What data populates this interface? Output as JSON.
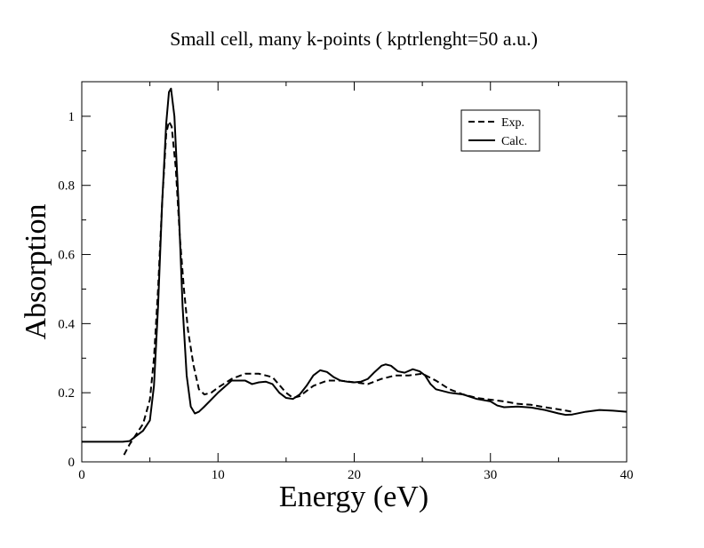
{
  "chart_data": {
    "type": "line",
    "title": "Small cell, many k-points ( kptrlenght=50 a.u.)",
    "xlabel": "Energy (eV)",
    "ylabel": "Absorption",
    "xlim": [
      0,
      40
    ],
    "ylim": [
      0,
      1.1
    ],
    "x_ticks": [
      0,
      10,
      20,
      30,
      40
    ],
    "y_ticks": [
      0,
      0.2,
      0.4,
      0.6,
      0.8,
      1
    ],
    "x_tick_labels": [
      "0",
      "10",
      "20",
      "30",
      "40"
    ],
    "y_tick_labels": [
      "0",
      "0.2",
      "0.4",
      "0.6",
      "0.8",
      "1"
    ],
    "grid": false,
    "legend_position": "top-right",
    "series": [
      {
        "name": "Exp.",
        "style": "dashed",
        "color": "#000000",
        "points": [
          [
            3.1,
            0.02
          ],
          [
            3.5,
            0.05
          ],
          [
            4.0,
            0.08
          ],
          [
            4.5,
            0.11
          ],
          [
            5.0,
            0.18
          ],
          [
            5.3,
            0.3
          ],
          [
            5.6,
            0.5
          ],
          [
            5.9,
            0.75
          ],
          [
            6.2,
            0.95
          ],
          [
            6.4,
            0.985
          ],
          [
            6.6,
            0.97
          ],
          [
            6.9,
            0.85
          ],
          [
            7.2,
            0.65
          ],
          [
            7.5,
            0.5
          ],
          [
            7.8,
            0.38
          ],
          [
            8.2,
            0.28
          ],
          [
            8.6,
            0.21
          ],
          [
            9.0,
            0.195
          ],
          [
            9.5,
            0.2
          ],
          [
            10.0,
            0.215
          ],
          [
            11.0,
            0.24
          ],
          [
            12.0,
            0.255
          ],
          [
            13.0,
            0.255
          ],
          [
            14.0,
            0.245
          ],
          [
            15.0,
            0.2
          ],
          [
            15.5,
            0.185
          ],
          [
            16.0,
            0.19
          ],
          [
            17.0,
            0.22
          ],
          [
            18.0,
            0.235
          ],
          [
            19.0,
            0.235
          ],
          [
            20.0,
            0.23
          ],
          [
            21.0,
            0.225
          ],
          [
            22.0,
            0.24
          ],
          [
            23.0,
            0.25
          ],
          [
            24.0,
            0.25
          ],
          [
            25.0,
            0.255
          ],
          [
            26.0,
            0.235
          ],
          [
            27.0,
            0.21
          ],
          [
            28.0,
            0.195
          ],
          [
            29.0,
            0.185
          ],
          [
            30.0,
            0.18
          ],
          [
            31.0,
            0.175
          ],
          [
            32.0,
            0.168
          ],
          [
            33.0,
            0.165
          ],
          [
            34.0,
            0.158
          ],
          [
            35.0,
            0.152
          ],
          [
            36.0,
            0.145
          ]
        ]
      },
      {
        "name": "Calc.",
        "style": "solid",
        "color": "#000000",
        "points": [
          [
            0.0,
            0.058
          ],
          [
            3.0,
            0.058
          ],
          [
            3.5,
            0.06
          ],
          [
            4.0,
            0.075
          ],
          [
            4.5,
            0.09
          ],
          [
            5.0,
            0.12
          ],
          [
            5.3,
            0.22
          ],
          [
            5.6,
            0.45
          ],
          [
            5.9,
            0.75
          ],
          [
            6.2,
            0.98
          ],
          [
            6.4,
            1.07
          ],
          [
            6.55,
            1.08
          ],
          [
            6.8,
            1.0
          ],
          [
            7.1,
            0.75
          ],
          [
            7.4,
            0.45
          ],
          [
            7.7,
            0.25
          ],
          [
            8.0,
            0.16
          ],
          [
            8.3,
            0.14
          ],
          [
            8.6,
            0.145
          ],
          [
            9.0,
            0.16
          ],
          [
            10.0,
            0.2
          ],
          [
            11.0,
            0.235
          ],
          [
            12.0,
            0.235
          ],
          [
            12.5,
            0.225
          ],
          [
            13.0,
            0.23
          ],
          [
            13.5,
            0.232
          ],
          [
            14.0,
            0.225
          ],
          [
            14.5,
            0.2
          ],
          [
            15.0,
            0.185
          ],
          [
            15.5,
            0.182
          ],
          [
            16.0,
            0.195
          ],
          [
            16.5,
            0.22
          ],
          [
            17.0,
            0.25
          ],
          [
            17.5,
            0.265
          ],
          [
            18.0,
            0.26
          ],
          [
            18.5,
            0.245
          ],
          [
            19.0,
            0.235
          ],
          [
            19.5,
            0.232
          ],
          [
            20.0,
            0.23
          ],
          [
            20.5,
            0.232
          ],
          [
            21.0,
            0.24
          ],
          [
            21.5,
            0.26
          ],
          [
            22.0,
            0.278
          ],
          [
            22.3,
            0.282
          ],
          [
            22.7,
            0.278
          ],
          [
            23.2,
            0.262
          ],
          [
            23.7,
            0.258
          ],
          [
            24.3,
            0.268
          ],
          [
            24.8,
            0.262
          ],
          [
            25.2,
            0.25
          ],
          [
            25.6,
            0.225
          ],
          [
            26.0,
            0.21
          ],
          [
            27.0,
            0.2
          ],
          [
            28.0,
            0.195
          ],
          [
            29.0,
            0.182
          ],
          [
            30.0,
            0.175
          ],
          [
            30.5,
            0.163
          ],
          [
            31.0,
            0.158
          ],
          [
            32.0,
            0.16
          ],
          [
            33.0,
            0.157
          ],
          [
            34.0,
            0.15
          ],
          [
            35.0,
            0.14
          ],
          [
            35.5,
            0.136
          ],
          [
            36.0,
            0.137
          ],
          [
            37.0,
            0.145
          ],
          [
            38.0,
            0.15
          ],
          [
            39.0,
            0.148
          ],
          [
            40.0,
            0.145
          ]
        ]
      }
    ]
  }
}
